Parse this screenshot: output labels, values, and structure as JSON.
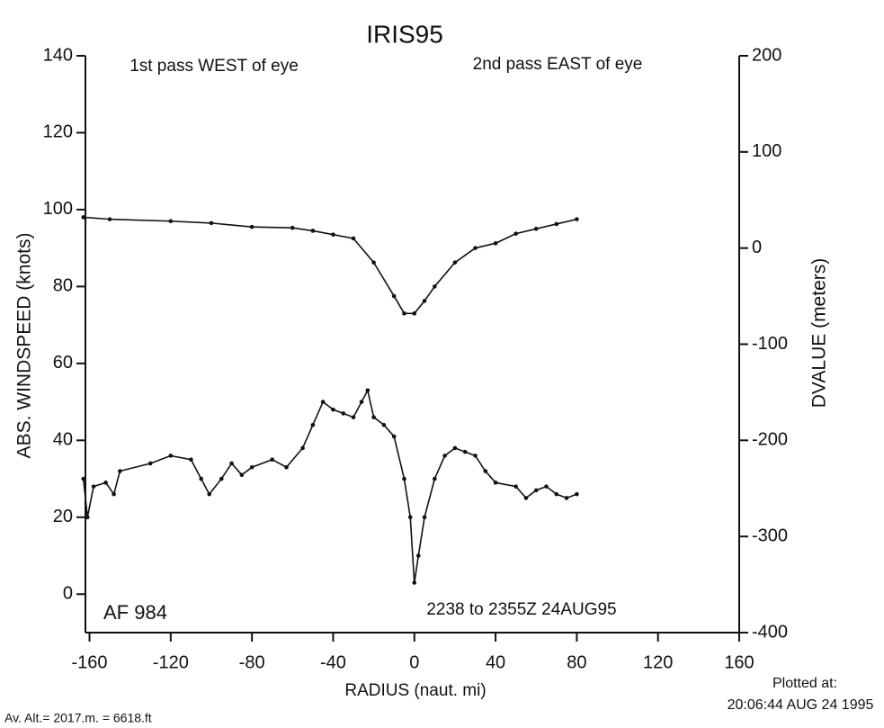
{
  "chart_data": {
    "type": "line",
    "title": "IRIS95",
    "xlabel": "RADIUS (naut. mi)",
    "ylabel": "ABS. WINDSPEED (knots)",
    "y2label": "DVALUE (meters)",
    "annotations": [
      "1st pass WEST of eye",
      "2nd pass EAST of eye",
      "AF 984",
      "2238 to 2355Z 24AUG95"
    ],
    "footer": [
      "Plotted at:",
      "20:06:44 AUG 24 1995",
      "Av. Alt.= 2017.m. =  6618.ft"
    ],
    "xlim": [
      -162,
      160
    ],
    "xticks": [
      -160,
      -120,
      -80,
      -40,
      0,
      40,
      80,
      120,
      160
    ],
    "ylim": [
      -10,
      140
    ],
    "yticks": [
      0,
      20,
      40,
      60,
      80,
      100,
      120,
      140
    ],
    "y2lim": [
      -400,
      200
    ],
    "y2ticks": [
      -400,
      -300,
      -200,
      -100,
      0,
      100,
      200
    ],
    "series": [
      {
        "color": "#111111",
        "x": [
          -163,
          -161,
          -158,
          -152,
          -148,
          -145,
          -130,
          -120,
          -110,
          -105,
          -101,
          -95,
          -90,
          -85,
          -80,
          -70,
          -63,
          -55,
          -50,
          -45,
          -40,
          -35,
          -30,
          -26,
          -23,
          -20,
          -15,
          -10,
          -5,
          -2,
          0,
          2,
          5,
          10,
          15,
          20,
          25,
          30,
          35,
          40,
          50,
          55,
          60,
          65,
          70,
          75,
          80
        ],
        "values": [
          30,
          20,
          28,
          29,
          26,
          32,
          34,
          36,
          35,
          30,
          26,
          30,
          34,
          31,
          33,
          35,
          33,
          38,
          44,
          50,
          48,
          47,
          46,
          50,
          53,
          46,
          44,
          41,
          30,
          20,
          3,
          10,
          20,
          30,
          36,
          38,
          37,
          36,
          32,
          29,
          28,
          25,
          27,
          28,
          26,
          25,
          26
        ]
      },
      {
        "color": "#111111",
        "axis": "y2",
        "x": [
          -163,
          -150,
          -120,
          -100,
          -80,
          -60,
          -50,
          -40,
          -30,
          -20,
          -10,
          -5,
          0,
          5,
          10,
          20,
          30,
          40,
          50,
          60,
          70,
          80
        ],
        "values": [
          32,
          30,
          28,
          26,
          22,
          21,
          18,
          14,
          10,
          -15,
          -50,
          -68,
          -68,
          -55,
          -40,
          -15,
          0,
          5,
          15,
          20,
          25,
          30
        ]
      }
    ]
  }
}
